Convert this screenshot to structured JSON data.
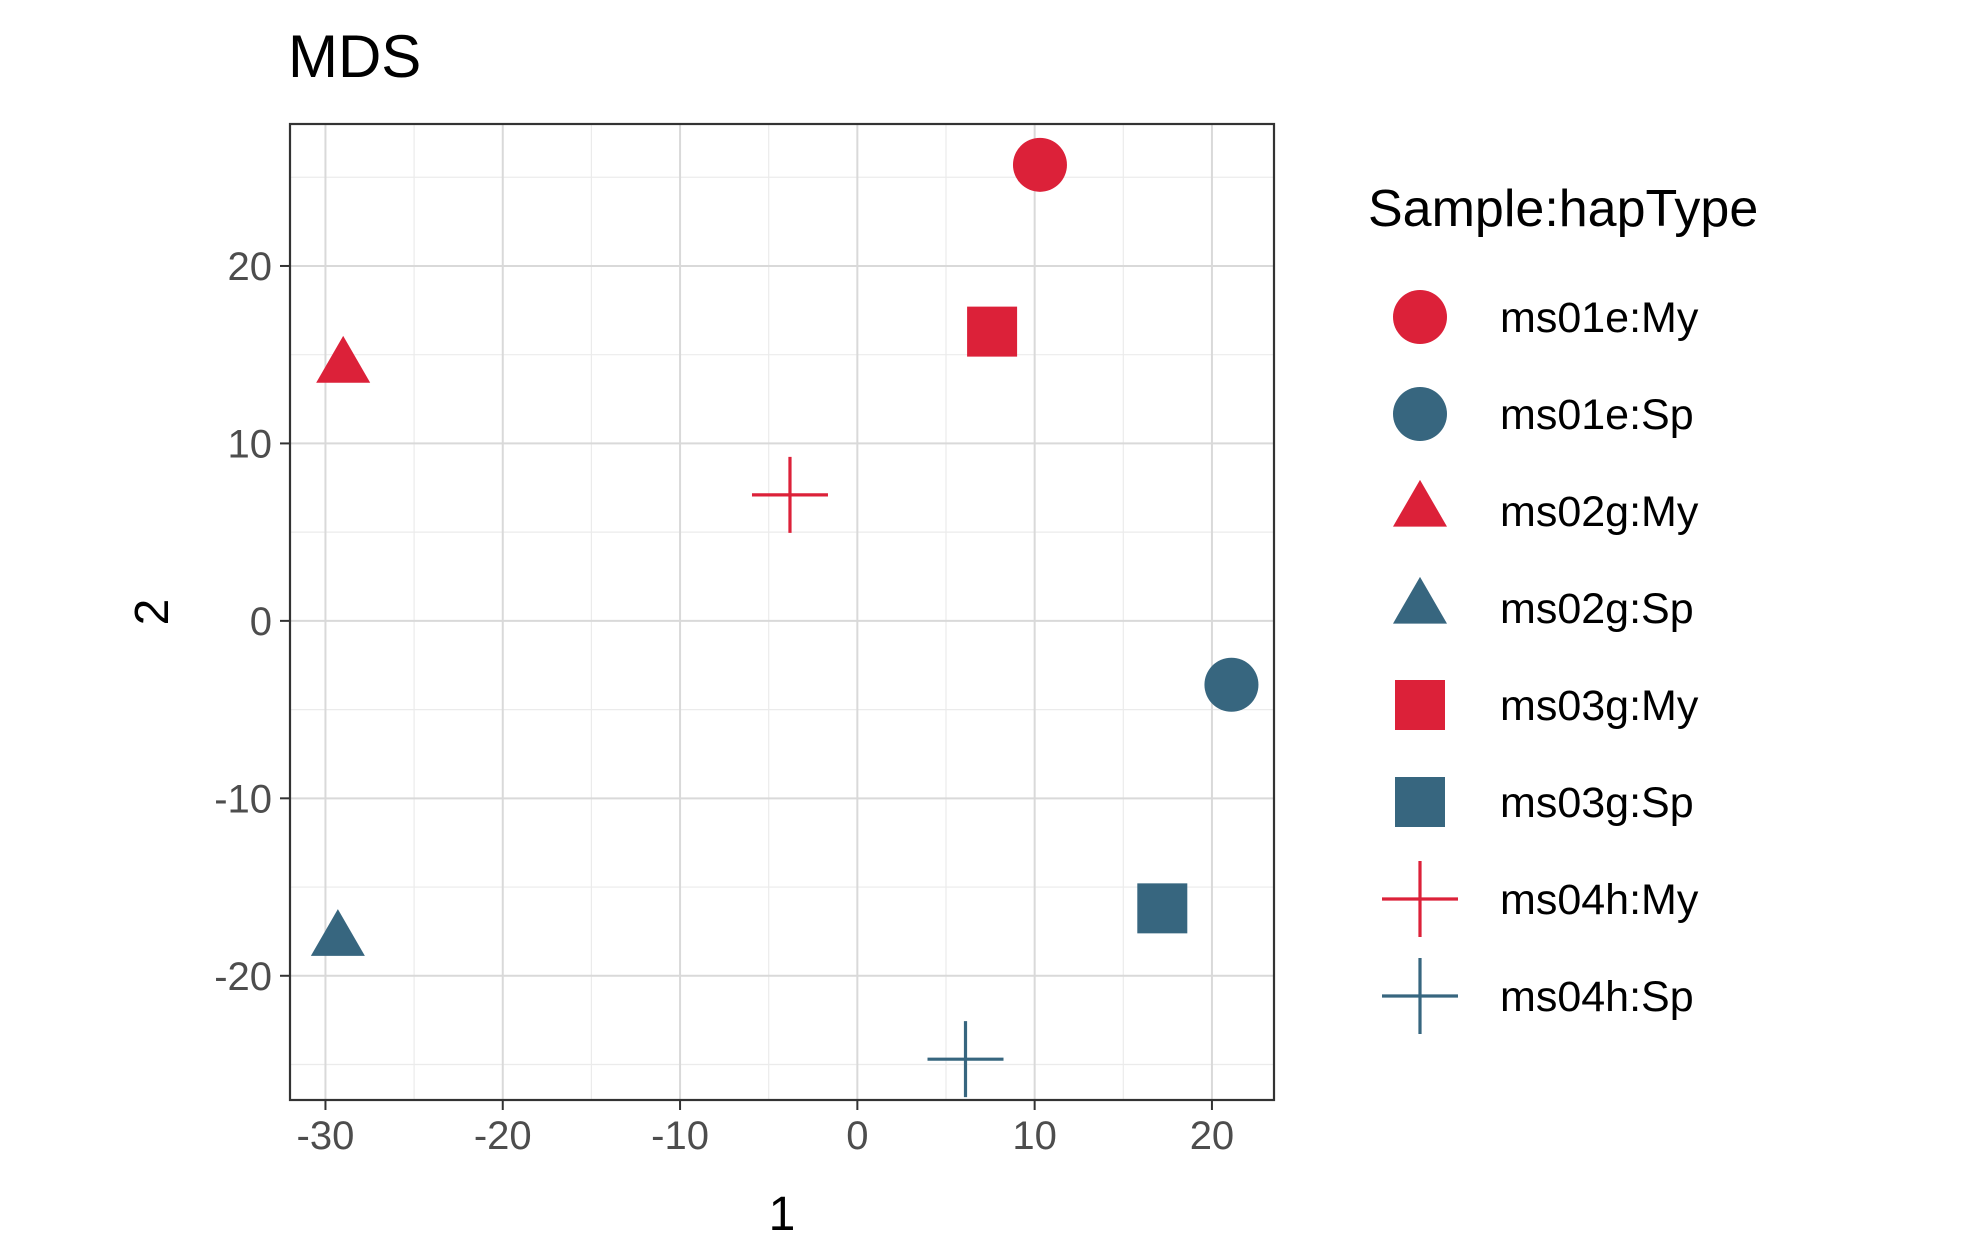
{
  "chart_data": {
    "type": "scatter",
    "title": "MDS",
    "xlabel": "1",
    "ylabel": "2",
    "xlim": [
      -32,
      23.5
    ],
    "ylim": [
      -27,
      28
    ],
    "xticks": [
      -30,
      -20,
      -10,
      0,
      10,
      20
    ],
    "yticks": [
      -20,
      -10,
      0,
      10,
      20
    ],
    "x_tick_labels": [
      "-30",
      "-20",
      "-10",
      "0",
      "10",
      "20"
    ],
    "y_tick_labels": [
      "-20",
      "-10",
      "0",
      "10",
      "20"
    ],
    "grid": true,
    "legend_position": "right",
    "legend_title": "Sample:hapType",
    "colors": {
      "My": "#dc2139",
      "Sp": "#37667f"
    },
    "series": [
      {
        "name": "ms01e:My",
        "shape": "circle",
        "color": "#dc2139",
        "x": 10.3,
        "y": 25.7
      },
      {
        "name": "ms01e:Sp",
        "shape": "circle",
        "color": "#37667f",
        "x": 21.1,
        "y": -3.6
      },
      {
        "name": "ms02g:My",
        "shape": "triangle",
        "color": "#dc2139",
        "x": -29.0,
        "y": 14.3
      },
      {
        "name": "ms02g:Sp",
        "shape": "triangle",
        "color": "#37667f",
        "x": -29.3,
        "y": -18.0
      },
      {
        "name": "ms03g:My",
        "shape": "square",
        "color": "#dc2139",
        "x": 7.6,
        "y": 16.3
      },
      {
        "name": "ms03g:Sp",
        "shape": "square",
        "color": "#37667f",
        "x": 17.2,
        "y": -16.2
      },
      {
        "name": "ms04h:My",
        "shape": "plus",
        "color": "#dc2139",
        "x": -3.8,
        "y": 7.1
      },
      {
        "name": "ms04h:Sp",
        "shape": "plus",
        "color": "#37667f",
        "x": 6.1,
        "y": -24.7
      }
    ]
  }
}
